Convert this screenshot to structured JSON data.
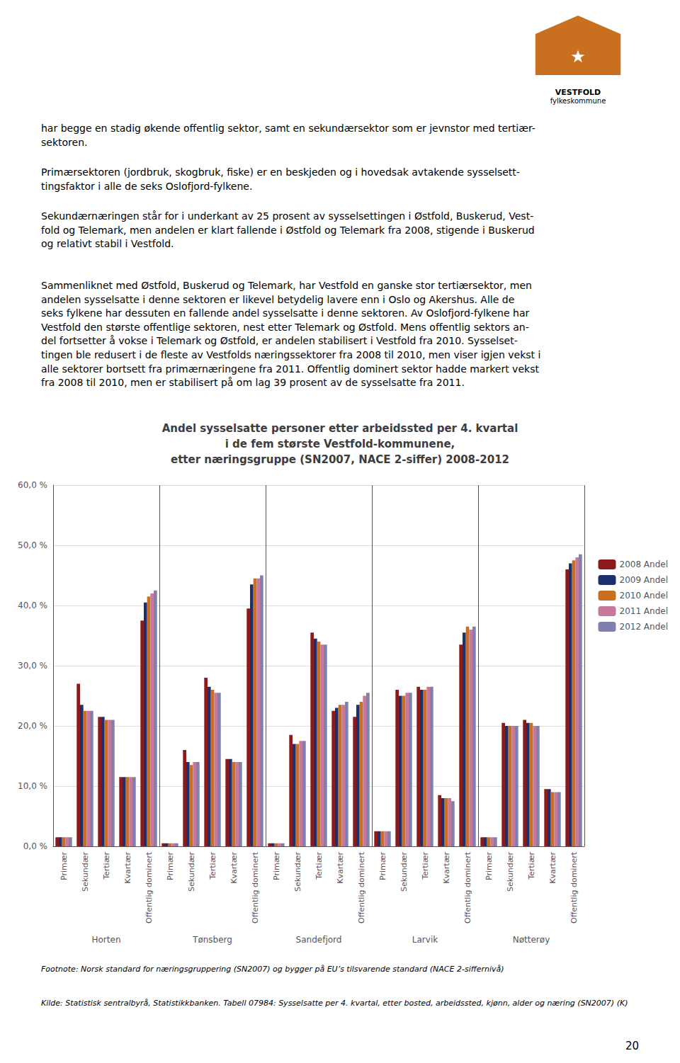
{
  "chart_data": {
    "type": "bar",
    "title": "Andel sysselsatte personer etter arbeidssted per 4. kvartal\ni de fem største Vestfold-kommunene,\netter næringsgruppe (SN2007, NACE 2-siffer) 2008-2012",
    "categories": [
      "Primær",
      "Sekundær",
      "Tertiær",
      "Kvartær",
      "Offentlig dominert",
      "Primær",
      "Sekundær",
      "Tertiær",
      "Kvartær",
      "Offentlig dominert",
      "Primær",
      "Sekundær",
      "Tertiær",
      "Kvartær",
      "Offentlig dominert",
      "Primær",
      "Sekundær",
      "Tertiær",
      "Kvartær",
      "Offentlig dominert",
      "Primær",
      "Sekundær",
      "Tertiær",
      "Kvartær",
      "Offentlig dominert"
    ],
    "groups": [
      "Horten",
      "Tønsberg",
      "Sandefjord",
      "Larvik",
      "Nøtterøy"
    ],
    "series": [
      {
        "name": "2008 Andel",
        "color": "#8B1A1A",
        "values": [
          1.5,
          27.0,
          21.5,
          11.5,
          37.5,
          0.5,
          16.0,
          28.0,
          14.5,
          39.5,
          0.5,
          18.5,
          35.5,
          22.5,
          21.5,
          2.5,
          26.0,
          26.5,
          8.5,
          33.5,
          1.5,
          20.5,
          21.0,
          9.5,
          46.0
        ]
      },
      {
        "name": "2009 Andel",
        "color": "#1C2F6E",
        "values": [
          1.5,
          23.5,
          21.5,
          11.5,
          40.5,
          0.5,
          14.0,
          26.5,
          14.5,
          43.5,
          0.5,
          17.0,
          34.5,
          23.0,
          23.5,
          2.5,
          25.0,
          26.0,
          8.0,
          35.5,
          1.5,
          20.0,
          20.5,
          9.5,
          47.0
        ]
      },
      {
        "name": "2010 Andel",
        "color": "#C87020",
        "values": [
          1.5,
          22.5,
          21.0,
          11.5,
          41.5,
          0.5,
          13.5,
          26.0,
          14.0,
          44.5,
          0.5,
          17.0,
          34.0,
          23.5,
          24.0,
          2.5,
          25.0,
          26.0,
          8.0,
          36.5,
          1.5,
          20.0,
          20.5,
          9.0,
          47.5
        ]
      },
      {
        "name": "2011 Andel",
        "color": "#C87898",
        "values": [
          1.5,
          22.5,
          21.0,
          11.5,
          42.0,
          0.5,
          14.0,
          25.5,
          14.0,
          44.5,
          0.5,
          17.5,
          33.5,
          23.5,
          25.0,
          2.5,
          25.5,
          26.5,
          8.0,
          36.0,
          1.5,
          20.0,
          20.0,
          9.0,
          48.0
        ]
      },
      {
        "name": "2012 Andel",
        "color": "#8080B0",
        "values": [
          1.5,
          22.5,
          21.0,
          11.5,
          42.5,
          0.5,
          14.0,
          25.5,
          14.0,
          45.0,
          0.5,
          17.5,
          33.5,
          24.0,
          25.5,
          2.5,
          25.5,
          26.5,
          7.5,
          36.5,
          1.5,
          20.0,
          20.0,
          9.0,
          48.5
        ]
      }
    ],
    "ylim": [
      0,
      60
    ],
    "yticks": [
      {
        "value": 0,
        "label": "0,0 %"
      },
      {
        "value": 10,
        "label": "10,0 %"
      },
      {
        "value": 20,
        "label": "20,0 %"
      },
      {
        "value": 30,
        "label": "30,0 %"
      },
      {
        "value": 40,
        "label": "40,0 %"
      },
      {
        "value": 50,
        "label": "50,0 %"
      },
      {
        "value": 60,
        "label": "60,0 %"
      }
    ],
    "grid": true,
    "legend": "right",
    "paragraphs": [
      "har begge en stadig økende offentlig sektor, samt en sekundærsektor som er jevnstor med tertiær-\nsektoren.",
      "Primærsektoren (jordbruk, skogbruk, fiske) er en beskjeden og i hovedsak avtakende sysselsett-\ntingsfaktor i alle de seks Oslofjord-fylkene.",
      "Sekundærnæringen står for i underkant av 25 prosent av sysselsettingen i Østfold, Buskerud, Vest-\nfold og Telemark, men andelen er klart fallende i Østfold og Telemark fra 2008, stigende i Buskerud\nog relativt stabil i Vestfold.",
      "Sammenliknet med Østfold, Buskerud og Telemark, har Vestfold en ganske stor tertiærsektor, men\nandelen sysselsatte i denne sektoren er likevel betydelig lavere enn i Oslo og Akershus. Alle de\nseks fylkene har dessuten en fallende andel sysselsatte i denne sektoren. Av Oslofjord-fylkene har\nVestfold den største offentlige sektoren, nest etter Telemark og Østfold. Mens offentlig sektors an-\ndel fortsetter å vokse i Telemark og Østfold, er andelen stabilisert i Vestfold fra 2010. Sysselset-\ntingen ble redusert i de fleste av Vestfolds næringssektorer fra 2008 til 2010, men viser igjen vekst i\nalle sektorer bortsett fra primærnæringene fra 2011. Offentlig dominert sektor hadde markert vekst\nfra 2008 til 2010, men er stabilisert på om lag 39 prosent av de sysselsatte fra 2011."
    ],
    "footnotes": [
      "Footnote: Norsk standard for næringsgruppering (SN2007) og bygger på EU’s tilsvarende standard (NACE 2-siffernivå)",
      "Kilde: Statistisk sentralbyrå, Statistikkbanken. Tabell 07984: Sysselsatte per 4. kvartal, etter bosted, arbeidssted, kjønn, alder og næring (SN2007) (K)"
    ],
    "page_number": "20",
    "logo": {
      "color": "#C87020",
      "texts": [
        "★",
        "VESTFOLD",
        "fylkeskommune"
      ]
    }
  }
}
